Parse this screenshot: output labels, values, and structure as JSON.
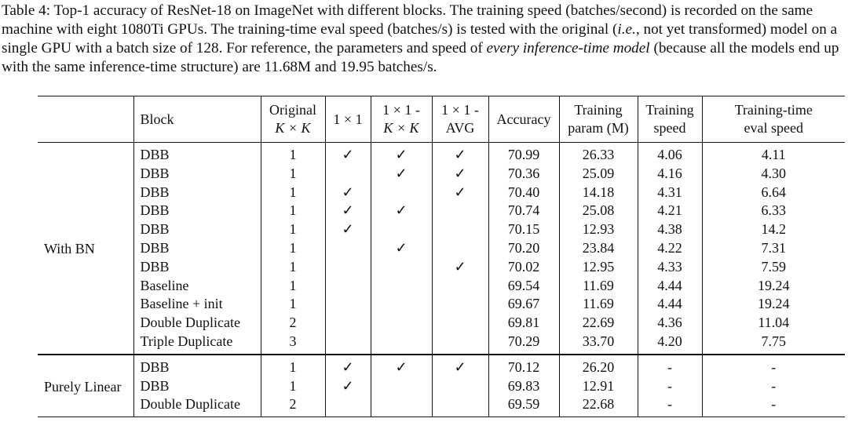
{
  "caption": {
    "part1": "Table 4: Top-1 accuracy of ResNet-18 on ImageNet with different blocks. The training speed (batches/second) is recorded on the same machine with eight 1080Ti GPUs. The training-time eval speed (batches/s) is tested with the original (",
    "ie": "i.e.",
    "part2": ", not yet transformed) model on a single GPU with a batch size of 128. For reference, the parameters and speed of ",
    "every": "every inference-time model",
    "part3": " (because all the models end up with the same inference-time structure) are 11.68M and 19.95 batches/s."
  },
  "headers": {
    "block": "Block",
    "original_l1": "Original",
    "original_l2": "K × K",
    "c1x1": "1 × 1",
    "c1x1kxk_l1": "1 × 1 -",
    "c1x1kxk_l2": "K × K",
    "c1x1avg_l1": "1 × 1 -",
    "c1x1avg_l2": "AVG",
    "accuracy": "Accuracy",
    "param_l1": "Training",
    "param_l2": "param (M)",
    "speed_l1": "Training",
    "speed_l2": "speed",
    "eval_l1": "Training-time",
    "eval_l2": "eval speed"
  },
  "groups": [
    {
      "label": "With BN",
      "rows": [
        {
          "block": "DBB",
          "orig": "1",
          "a": "✓",
          "b": "✓",
          "c": "✓",
          "acc": "70.99",
          "param": "26.33",
          "speed": "4.06",
          "eval": "4.11"
        },
        {
          "block": "DBB",
          "orig": "1",
          "a": "",
          "b": "✓",
          "c": "✓",
          "acc": "70.36",
          "param": "25.09",
          "speed": "4.16",
          "eval": "4.30"
        },
        {
          "block": "DBB",
          "orig": "1",
          "a": "✓",
          "b": "",
          "c": "✓",
          "acc": "70.40",
          "param": "14.18",
          "speed": "4.31",
          "eval": "6.64"
        },
        {
          "block": "DBB",
          "orig": "1",
          "a": "✓",
          "b": "✓",
          "c": "",
          "acc": "70.74",
          "param": "25.08",
          "speed": "4.21",
          "eval": "6.33"
        },
        {
          "block": "DBB",
          "orig": "1",
          "a": "✓",
          "b": "",
          "c": "",
          "acc": "70.15",
          "param": "12.93",
          "speed": "4.38",
          "eval": "14.2"
        },
        {
          "block": "DBB",
          "orig": "1",
          "a": "",
          "b": "✓",
          "c": "",
          "acc": "70.20",
          "param": "23.84",
          "speed": "4.22",
          "eval": "7.31"
        },
        {
          "block": "DBB",
          "orig": "1",
          "a": "",
          "b": "",
          "c": "✓",
          "acc": "70.02",
          "param": "12.95",
          "speed": "4.33",
          "eval": "7.59"
        },
        {
          "block": "Baseline",
          "orig": "1",
          "a": "",
          "b": "",
          "c": "",
          "acc": "69.54",
          "param": "11.69",
          "speed": "4.44",
          "eval": "19.24"
        },
        {
          "block": "Baseline + init",
          "orig": "1",
          "a": "",
          "b": "",
          "c": "",
          "acc": "69.67",
          "param": "11.69",
          "speed": "4.44",
          "eval": "19.24"
        },
        {
          "block": "Double Duplicate",
          "orig": "2",
          "a": "",
          "b": "",
          "c": "",
          "acc": "69.81",
          "param": "22.69",
          "speed": "4.36",
          "eval": "11.04"
        },
        {
          "block": "Triple Duplicate",
          "orig": "3",
          "a": "",
          "b": "",
          "c": "",
          "acc": "70.29",
          "param": "33.70",
          "speed": "4.20",
          "eval": "7.75"
        }
      ]
    },
    {
      "label": "Purely Linear",
      "rows": [
        {
          "block": "DBB",
          "orig": "1",
          "a": "✓",
          "b": "✓",
          "c": "✓",
          "acc": "70.12",
          "param": "26.20",
          "speed": "-",
          "eval": "-"
        },
        {
          "block": "DBB",
          "orig": "1",
          "a": "✓",
          "b": "",
          "c": "",
          "acc": "69.83",
          "param": "12.91",
          "speed": "-",
          "eval": "-"
        },
        {
          "block": "Double Duplicate",
          "orig": "2",
          "a": "",
          "b": "",
          "c": "",
          "acc": "69.59",
          "param": "22.68",
          "speed": "-",
          "eval": "-"
        }
      ]
    }
  ]
}
